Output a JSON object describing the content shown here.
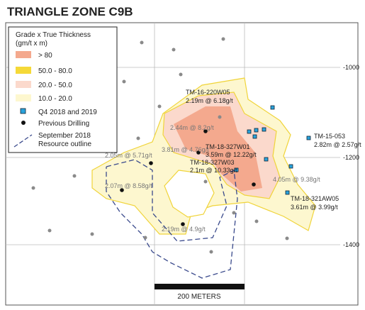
{
  "title": "TRIANGLE ZONE C9B",
  "elevation_labels": [
    "-1000",
    "-1200",
    "-1400"
  ],
  "legend": {
    "title_lines": [
      "Grade x True Thickness",
      "(gm/t x m)"
    ],
    "items": [
      {
        "label": "> 80"
      },
      {
        "label": "50.0 - 80.0"
      },
      {
        "label": "20.0 - 50.0"
      },
      {
        "label": "10.0 - 20.0"
      },
      {
        "label": "Q4 2018 and 2019"
      },
      {
        "label": "Previous Drilling"
      },
      {
        "label_lines": [
          "September 2018",
          "Resource outline"
        ]
      }
    ]
  },
  "annotations": [
    {
      "lines": [
        "TM-16-220W05",
        "2.19m @ 6.18g/t"
      ]
    },
    {
      "lines": [
        "2.44m @ 8.2g/t"
      ]
    },
    {
      "lines": [
        "3.81m @ 4.76g/t"
      ]
    },
    {
      "lines": [
        "TM-18-327W01",
        "3.59m @ 12.22g/t"
      ]
    },
    {
      "lines": [
        "2.05m @ 5.71g/t"
      ]
    },
    {
      "lines": [
        "TM-18-327W03",
        "2.1m @ 10.33g/t"
      ]
    },
    {
      "lines": [
        "4.05m @ 9.38g/t"
      ]
    },
    {
      "lines": [
        "2.07m @ 8.58g/t"
      ]
    },
    {
      "lines": [
        "TM-18-321AW05",
        "3.61m @ 3.99g/t"
      ]
    },
    {
      "lines": [
        "TM-15-053",
        "2.82m @ 2.57g/t"
      ]
    },
    {
      "lines": [
        "2.19m @ 4.9g/t"
      ]
    }
  ],
  "scale_bar": {
    "label": "200 METERS"
  }
}
